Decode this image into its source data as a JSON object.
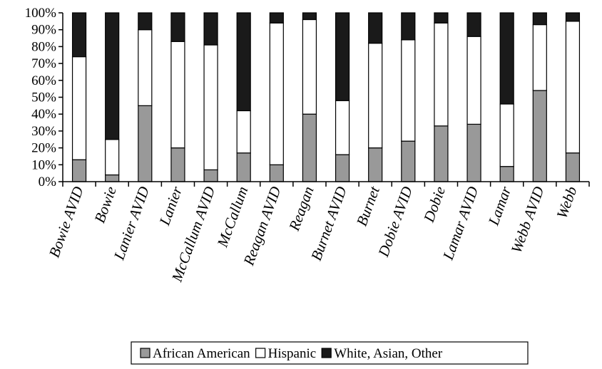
{
  "chart_data": {
    "type": "bar",
    "stacked": true,
    "stack_mode": "percent",
    "categories": [
      "Bowie AVID",
      "Bowie",
      "Lanier AVID",
      "Lanier",
      "McCallum AVID",
      "McCallum",
      "Reagan AVID",
      "Reagan",
      "Burnet AVID",
      "Burnet",
      "Dobie AVID",
      "Dobie",
      "Lamar AVID",
      "Lamar",
      "Webb AVID",
      "Webb"
    ],
    "series": [
      {
        "name": "African American",
        "color": "#999999",
        "values": [
          13,
          4,
          45,
          20,
          7,
          17,
          10,
          40,
          16,
          20,
          24,
          33,
          34,
          9,
          54,
          17
        ]
      },
      {
        "name": "Hispanic",
        "color": "#ffffff",
        "values": [
          61,
          21,
          45,
          63,
          74,
          25,
          84,
          56,
          32,
          62,
          60,
          61,
          52,
          37,
          39,
          78
        ]
      },
      {
        "name": "White, Asian, Other",
        "color": "#1a1a1a",
        "values": [
          26,
          75,
          10,
          17,
          19,
          58,
          6,
          4,
          52,
          18,
          16,
          6,
          14,
          54,
          7,
          5
        ]
      }
    ],
    "y_ticks": [
      "0%",
      "10%",
      "20%",
      "30%",
      "40%",
      "50%",
      "60%",
      "70%",
      "80%",
      "90%",
      "100%"
    ],
    "ylim": [
      0,
      100
    ],
    "title": "",
    "xlabel": "",
    "ylabel": "",
    "grid": false,
    "legend_position": "bottom"
  }
}
